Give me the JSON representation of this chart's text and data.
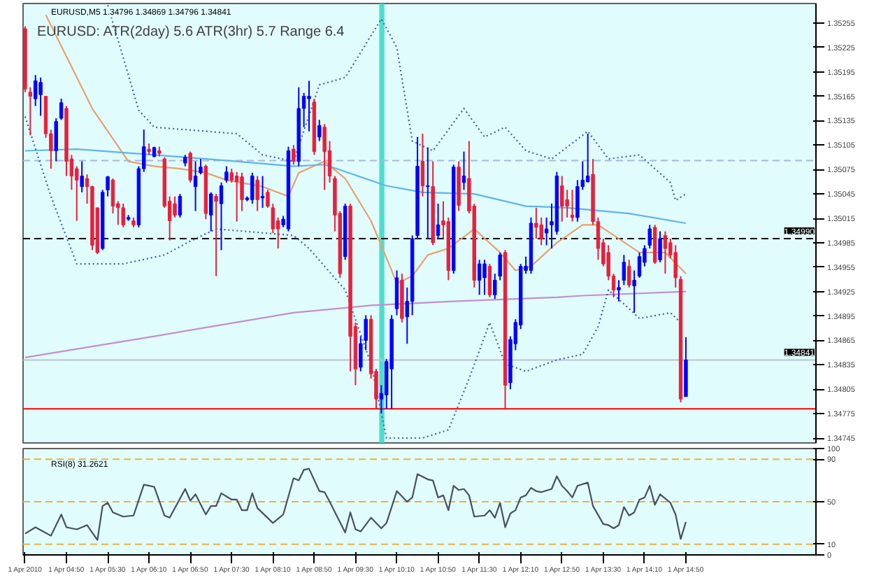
{
  "chart_data": [
    {
      "type": "candlestick",
      "title": "EURUSD,M5  1.34796 1.34869 1.34796 1.34841",
      "subtitle": "EURUSD: ATR(2day)     5.6   ATR(3hr)     5.7   Range     6.4",
      "xlim": [
        "2010-04-01T04:08",
        "2010-04-01T16:56"
      ],
      "tick_labels": "y",
      "ylim": [
        1.34739,
        1.35279
      ],
      "yticks": [
        1.34745,
        1.34775,
        1.34805,
        1.34835,
        1.34865,
        1.34895,
        1.34925,
        1.34955,
        1.34985,
        1.35015,
        1.35045,
        1.35075,
        1.35105,
        1.35135,
        1.35165,
        1.35195,
        1.35225,
        1.35255
      ],
      "x": [
        "2010-04-01T04:10",
        "2010-04-01T04:15",
        "2010-04-01T04:20",
        "2010-04-01T04:25",
        "2010-04-01T04:30",
        "2010-04-01T04:35",
        "2010-04-01T04:40",
        "2010-04-01T04:45",
        "2010-04-01T04:50",
        "2010-04-01T04:55",
        "2010-04-01T05:00",
        "2010-04-01T05:05",
        "2010-04-01T05:10",
        "2010-04-01T05:15",
        "2010-04-01T05:20",
        "2010-04-01T05:25",
        "2010-04-01T05:30",
        "2010-04-01T05:35",
        "2010-04-01T05:40",
        "2010-04-01T05:45",
        "2010-04-01T05:50",
        "2010-04-01T05:55",
        "2010-04-01T06:00",
        "2010-04-01T06:05",
        "2010-04-01T06:10",
        "2010-04-01T06:15",
        "2010-04-01T06:20",
        "2010-04-01T06:25",
        "2010-04-01T06:30",
        "2010-04-01T06:35",
        "2010-04-01T06:40",
        "2010-04-01T06:45",
        "2010-04-01T06:50",
        "2010-04-01T06:55",
        "2010-04-01T07:00",
        "2010-04-01T07:05",
        "2010-04-01T07:10",
        "2010-04-01T07:15",
        "2010-04-01T07:20",
        "2010-04-01T07:25",
        "2010-04-01T07:30",
        "2010-04-01T07:35",
        "2010-04-01T07:40",
        "2010-04-01T07:45",
        "2010-04-01T07:50",
        "2010-04-01T07:55",
        "2010-04-01T08:00",
        "2010-04-01T08:05",
        "2010-04-01T08:10",
        "2010-04-01T08:15",
        "2010-04-01T08:20",
        "2010-04-01T08:25",
        "2010-04-01T08:30",
        "2010-04-01T08:35",
        "2010-04-01T08:40",
        "2010-04-01T08:45",
        "2010-04-01T08:50",
        "2010-04-01T08:55",
        "2010-04-01T09:00",
        "2010-04-01T09:05",
        "2010-04-01T09:10",
        "2010-04-01T09:15",
        "2010-04-01T09:20",
        "2010-04-01T09:25",
        "2010-04-01T09:30",
        "2010-04-01T09:35",
        "2010-04-01T09:40",
        "2010-04-01T09:45",
        "2010-04-01T09:50",
        "2010-04-01T09:55",
        "2010-04-01T10:00",
        "2010-04-01T10:05",
        "2010-04-01T10:10",
        "2010-04-01T10:15",
        "2010-04-01T10:20",
        "2010-04-01T10:25",
        "2010-04-01T10:30",
        "2010-04-01T10:35",
        "2010-04-01T10:40",
        "2010-04-01T10:45",
        "2010-04-01T10:50",
        "2010-04-01T10:55",
        "2010-04-01T11:00",
        "2010-04-01T11:05",
        "2010-04-01T11:10",
        "2010-04-01T11:15",
        "2010-04-01T11:20",
        "2010-04-01T11:25",
        "2010-04-01T11:30",
        "2010-04-01T11:35",
        "2010-04-01T11:40",
        "2010-04-01T11:45",
        "2010-04-01T11:50",
        "2010-04-01T11:55",
        "2010-04-01T12:00",
        "2010-04-01T12:05",
        "2010-04-01T12:10",
        "2010-04-01T12:15",
        "2010-04-01T12:20",
        "2010-04-01T12:25",
        "2010-04-01T12:30",
        "2010-04-01T12:35",
        "2010-04-01T12:40",
        "2010-04-01T12:45",
        "2010-04-01T12:50",
        "2010-04-01T12:55",
        "2010-04-01T13:00",
        "2010-04-01T13:05",
        "2010-04-01T13:10",
        "2010-04-01T13:15",
        "2010-04-01T13:20",
        "2010-04-01T13:25",
        "2010-04-01T13:30",
        "2010-04-01T13:35",
        "2010-04-01T13:40",
        "2010-04-01T13:45",
        "2010-04-01T13:50",
        "2010-04-01T13:55",
        "2010-04-01T14:00",
        "2010-04-01T14:05",
        "2010-04-01T14:10",
        "2010-04-01T14:15",
        "2010-04-01T14:20",
        "2010-04-01T14:25",
        "2010-04-01T14:30",
        "2010-04-01T14:35",
        "2010-04-01T14:40",
        "2010-04-01T14:45",
        "2010-04-01T14:50"
      ],
      "ohlc": [
        [
          1.35248,
          1.35251,
          1.3517,
          1.35174
        ],
        [
          1.3517,
          1.35176,
          1.35117,
          1.35165
        ],
        [
          1.35162,
          1.35191,
          1.35153,
          1.35184
        ],
        [
          1.35167,
          1.35188,
          1.35141,
          1.35182
        ],
        [
          1.35165,
          1.35165,
          1.35114,
          1.35119
        ],
        [
          1.35119,
          1.35124,
          1.35076,
          1.35098
        ],
        [
          1.35098,
          1.35138,
          1.35085,
          1.35134
        ],
        [
          1.35138,
          1.35162,
          1.35136,
          1.35157
        ],
        [
          1.3515,
          1.35153,
          1.35067,
          1.35085
        ],
        [
          1.35088,
          1.35093,
          1.3505,
          1.35067
        ],
        [
          1.35076,
          1.35079,
          1.35012,
          1.35062
        ],
        [
          1.35054,
          1.35085,
          1.35047,
          1.35067
        ],
        [
          1.35064,
          1.35069,
          1.35033,
          1.35054
        ],
        [
          1.35054,
          1.35055,
          1.34976,
          1.34982
        ],
        [
          1.35028,
          1.35028,
          1.34971,
          1.34973
        ],
        [
          1.34978,
          1.3505,
          1.34976,
          1.35047
        ],
        [
          1.3505,
          1.35067,
          1.35042,
          1.35066
        ],
        [
          1.35062,
          1.35064,
          1.35021,
          1.3503
        ],
        [
          1.35033,
          1.35036,
          1.35007,
          1.35028
        ],
        [
          1.35028,
          1.35033,
          1.35004,
          1.35007
        ],
        [
          1.35014,
          1.35019,
          1.35012,
          1.35016
        ],
        [
          1.35012,
          1.35016,
          1.35004,
          1.35007
        ],
        [
          1.35007,
          1.35079,
          1.35004,
          1.35076
        ],
        [
          1.35076,
          1.35124,
          1.35072,
          1.35103
        ],
        [
          1.351,
          1.35107,
          1.35093,
          1.35097
        ],
        [
          1.35091,
          1.35103,
          1.3509,
          1.35102
        ],
        [
          1.35098,
          1.35103,
          1.35091,
          1.35095
        ],
        [
          1.35088,
          1.3509,
          1.35028,
          1.3503
        ],
        [
          1.35036,
          1.35042,
          1.34988,
          1.35012
        ],
        [
          1.35033,
          1.35042,
          1.35016,
          1.35019
        ],
        [
          1.35019,
          1.35045,
          1.35016,
          1.35042
        ],
        [
          1.35083,
          1.35093,
          1.35079,
          1.3509
        ],
        [
          1.35095,
          1.35097,
          1.35059,
          1.35062
        ],
        [
          1.35054,
          1.35085,
          1.35024,
          1.35067
        ],
        [
          1.35071,
          1.35088,
          1.35069,
          1.35078
        ],
        [
          1.35079,
          1.35081,
          1.35014,
          1.35021
        ],
        [
          1.35019,
          1.35047,
          1.34999,
          1.35045
        ],
        [
          1.35042,
          1.35045,
          1.34944,
          1.35036
        ],
        [
          1.35033,
          1.35059,
          1.34976,
          1.35055
        ],
        [
          1.35062,
          1.35079,
          1.35059,
          1.35072
        ],
        [
          1.35071,
          1.35076,
          1.35059,
          1.35062
        ],
        [
          1.35067,
          1.35072,
          1.35011,
          1.3506
        ],
        [
          1.35066,
          1.35071,
          1.35024,
          1.35038
        ],
        [
          1.35038,
          1.35042,
          1.35036,
          1.3504
        ],
        [
          1.35038,
          1.35071,
          1.35033,
          1.35067
        ],
        [
          1.35062,
          1.35067,
          1.35024,
          1.35038
        ],
        [
          1.3504,
          1.35067,
          1.35028,
          1.35042
        ],
        [
          1.35047,
          1.3505,
          1.35028,
          1.3503
        ],
        [
          1.35028,
          1.35033,
          1.34997,
          1.35002
        ],
        [
          1.35012,
          1.35016,
          1.34978,
          1.35002
        ],
        [
          1.35007,
          1.35018,
          1.35004,
          1.35014
        ],
        [
          1.35002,
          1.35103,
          1.34999,
          1.35098
        ],
        [
          1.351,
          1.35105,
          1.35081,
          1.35085
        ],
        [
          1.35085,
          1.35176,
          1.35079,
          1.3515
        ],
        [
          1.3515,
          1.35169,
          1.35127,
          1.35165
        ],
        [
          1.35162,
          1.35184,
          1.35122,
          1.35165
        ],
        [
          1.35158,
          1.35162,
          1.35093,
          1.35097
        ],
        [
          1.35115,
          1.35136,
          1.3511,
          1.35129
        ],
        [
          1.35127,
          1.35131,
          1.3505,
          1.35097
        ],
        [
          1.35098,
          1.3511,
          1.35059,
          1.35067
        ],
        [
          1.35064,
          1.35067,
          1.34999,
          1.35019
        ],
        [
          1.35021,
          1.35024,
          1.34942,
          1.34947
        ],
        [
          1.34968,
          1.35033,
          1.34964,
          1.3503
        ],
        [
          1.3503,
          1.35033,
          1.34827,
          1.3487
        ],
        [
          1.34882,
          1.34887,
          1.3481,
          1.3483
        ],
        [
          1.34832,
          1.3487,
          1.34827,
          1.34861
        ],
        [
          1.34865,
          1.34896,
          1.34853,
          1.34891
        ],
        [
          1.34891,
          1.34896,
          1.34818,
          1.34824
        ],
        [
          1.34827,
          1.3483,
          1.34781,
          1.34793
        ],
        [
          1.34793,
          1.3481,
          1.34776,
          1.348
        ],
        [
          1.34798,
          1.34842,
          1.34781,
          1.34839
        ],
        [
          1.3483,
          1.34896,
          1.34781,
          1.34891
        ],
        [
          1.34904,
          1.34951,
          1.34896,
          1.34942
        ],
        [
          1.34939,
          1.34947,
          1.34887,
          1.34892
        ],
        [
          1.34894,
          1.3493,
          1.34861,
          1.34913
        ],
        [
          1.34913,
          1.34994,
          1.34896,
          1.3499
        ],
        [
          1.34994,
          1.35115,
          1.3499,
          1.35079
        ],
        [
          1.35085,
          1.35119,
          1.35042,
          1.35055
        ],
        [
          1.35054,
          1.35102,
          1.3499,
          1.35055
        ],
        [
          1.35054,
          1.35085,
          1.34982,
          1.34985
        ],
        [
          1.34994,
          1.35033,
          1.3499,
          1.35007
        ],
        [
          1.35012,
          1.35036,
          1.3499,
          1.35007
        ],
        [
          1.35011,
          1.35016,
          1.34939,
          1.34951
        ],
        [
          1.34951,
          1.35081,
          1.34947,
          1.35078
        ],
        [
          1.35078,
          1.35085,
          1.35024,
          1.35031
        ],
        [
          1.35059,
          1.35097,
          1.3505,
          1.35067
        ],
        [
          1.35064,
          1.3511,
          1.35021,
          1.35024
        ],
        [
          1.3503,
          1.35033,
          1.3493,
          1.34939
        ],
        [
          1.34939,
          1.34964,
          1.34921,
          1.34959
        ],
        [
          1.34942,
          1.34964,
          1.34921,
          1.34959
        ],
        [
          1.34956,
          1.34959,
          1.34918,
          1.34921
        ],
        [
          1.34921,
          1.34947,
          1.34916,
          1.34939
        ],
        [
          1.34944,
          1.34973,
          1.34939,
          1.3497
        ],
        [
          1.34973,
          1.34976,
          1.34781,
          1.3481
        ],
        [
          1.34813,
          1.3487,
          1.34805,
          1.34866
        ],
        [
          1.34861,
          1.34891,
          1.34853,
          1.34887
        ],
        [
          1.34884,
          1.34959,
          1.34879,
          1.34956
        ],
        [
          1.34951,
          1.34968,
          1.34947,
          1.34956
        ],
        [
          1.34951,
          1.35016,
          1.34947,
          1.35009
        ],
        [
          1.35009,
          1.35028,
          1.3499,
          1.35004
        ],
        [
          1.35007,
          1.35016,
          1.34982,
          1.3499
        ],
        [
          1.34997,
          1.35016,
          1.34982,
          1.35002
        ],
        [
          1.35007,
          1.35033,
          1.34978,
          1.35011
        ],
        [
          1.34999,
          1.35072,
          1.34995,
          1.35067
        ],
        [
          1.35055,
          1.35067,
          1.35011,
          1.3503
        ],
        [
          1.35038,
          1.3505,
          1.35016,
          1.3503
        ],
        [
          1.35019,
          1.3505,
          1.35011,
          1.35016
        ],
        [
          1.35016,
          1.35062,
          1.35011,
          1.35054
        ],
        [
          1.35054,
          1.35085,
          1.3505,
          1.35062
        ],
        [
          1.3506,
          1.35119,
          1.35059,
          1.35067
        ],
        [
          1.35069,
          1.35088,
          1.35007,
          1.35011
        ],
        [
          1.35011,
          1.35016,
          1.34964,
          1.34978
        ],
        [
          1.34985,
          1.3499,
          1.34956,
          1.34959
        ],
        [
          1.34973,
          1.34982,
          1.34939,
          1.34944
        ],
        [
          1.34944,
          1.34947,
          1.34918,
          1.34927
        ],
        [
          1.34927,
          1.34939,
          1.34913,
          1.3493
        ],
        [
          1.34939,
          1.3497,
          1.34933,
          1.34961
        ],
        [
          1.34956,
          1.34964,
          1.3493,
          1.34933
        ],
        [
          1.34932,
          1.34951,
          1.34899,
          1.34939
        ],
        [
          1.34944,
          1.34973,
          1.34942,
          1.34968
        ],
        [
          1.34961,
          1.34982,
          1.34956,
          1.34978
        ],
        [
          1.34982,
          1.35007,
          1.34978,
          1.35002
        ],
        [
          1.35004,
          1.35007,
          1.34959,
          1.34961
        ],
        [
          1.34964,
          1.34999,
          1.34961,
          1.3499
        ],
        [
          1.34994,
          1.34999,
          1.34947,
          1.34978
        ],
        [
          1.34985,
          1.3499,
          1.34966,
          1.3497
        ],
        [
          1.34973,
          1.34982,
          1.3493,
          1.34942
        ],
        [
          1.3494,
          1.34944,
          1.34789,
          1.34793
        ],
        [
          1.34796,
          1.34869,
          1.34796,
          1.34841
        ]
      ],
      "colors": [
        "#e8203c",
        "#e8203c",
        "#0000ff",
        "#0000ff",
        "#e8203c",
        "#e8203c",
        "#0000ff",
        "#0000ff",
        "#e8203c",
        "#e8203c",
        "#e8203c",
        "#0000ff",
        "#e8203c",
        "#e8203c",
        "#e8203c",
        "#0000ff",
        "#0000ff",
        "#e8203c",
        "#e8203c",
        "#e8203c",
        "#0000ff",
        "#e8203c",
        "#0000ff",
        "#0000ff",
        "#e8203c",
        "#0000ff",
        "#e8203c",
        "#e8203c",
        "#e8203c",
        "#e8203c",
        "#0000ff",
        "#0000ff",
        "#e8203c",
        "#0000ff",
        "#0000ff",
        "#e8203c",
        "#0000ff",
        "#e8203c",
        "#0000ff",
        "#0000ff",
        "#e8203c",
        "#e8203c",
        "#e8203c",
        "#0000ff",
        "#0000ff",
        "#e8203c",
        "#0000ff",
        "#e8203c",
        "#e8203c",
        "#e8203c",
        "#0000ff",
        "#0000ff",
        "#e8203c",
        "#0000ff",
        "#0000ff",
        "#0000ff",
        "#e8203c",
        "#0000ff",
        "#e8203c",
        "#e8203c",
        "#e8203c",
        "#e8203c",
        "#0000ff",
        "#e8203c",
        "#e8203c",
        "#0000ff",
        "#0000ff",
        "#e8203c",
        "#e8203c",
        "#0000ff",
        "#0000ff",
        "#0000ff",
        "#0000ff",
        "#e8203c",
        "#0000ff",
        "#0000ff",
        "#0000ff",
        "#e8203c",
        "#0000ff",
        "#e8203c",
        "#0000ff",
        "#e8203c",
        "#e8203c",
        "#0000ff",
        "#e8203c",
        "#0000ff",
        "#e8203c",
        "#e8203c",
        "#0000ff",
        "#0000ff",
        "#e8203c",
        "#0000ff",
        "#0000ff",
        "#e8203c",
        "#0000ff",
        "#0000ff",
        "#0000ff",
        "#0000ff",
        "#0000ff",
        "#e8203c",
        "#e8203c",
        "#0000ff",
        "#0000ff",
        "#0000ff",
        "#e8203c",
        "#e8203c",
        "#e8203c",
        "#0000ff",
        "#0000ff",
        "#0000ff",
        "#e8203c",
        "#e8203c",
        "#e8203c",
        "#e8203c",
        "#e8203c",
        "#0000ff",
        "#0000ff",
        "#e8203c",
        "#0000ff",
        "#0000ff",
        "#0000ff",
        "#0000ff",
        "#e8203c",
        "#0000ff",
        "#e8203c",
        "#e8203c",
        "#e8203c",
        "#e8203c",
        "#0000ff"
      ],
      "series": [
        {
          "type": "line",
          "color": "#e8a070",
          "x": [
            "2010-04-01T04:30",
            "2010-04-01T05:15",
            "2010-04-01T05:50",
            "2010-04-01T06:15",
            "2010-04-01T06:40",
            "2010-04-01T07:05",
            "2010-04-01T07:25",
            "2010-04-01T08:00",
            "2010-04-01T08:25",
            "2010-04-01T08:35",
            "2010-04-01T09:00",
            "2010-04-01T09:20",
            "2010-04-01T09:45",
            "2010-04-01T10:05",
            "2010-04-01T10:10",
            "2010-04-01T10:25",
            "2010-04-01T10:40",
            "2010-04-01T11:00",
            "2010-04-01T11:25",
            "2010-04-01T11:50",
            "2010-04-01T12:05",
            "2010-04-01T12:20",
            "2010-04-01T12:45",
            "2010-04-01T13:10",
            "2010-04-01T13:25",
            "2010-04-01T13:45",
            "2010-04-01T14:05",
            "2010-04-01T14:30",
            "2010-04-01T14:50"
          ],
          "values": [
            1.35265,
            1.3515,
            1.35085,
            1.35079,
            1.35076,
            1.35071,
            1.35062,
            1.35054,
            1.35042,
            1.35071,
            1.35085,
            1.35064,
            1.35012,
            1.34951,
            1.34935,
            1.34944,
            1.3497,
            1.34978,
            1.35002,
            1.34973,
            1.34951,
            1.34956,
            1.34985,
            1.35007,
            1.35007,
            1.3499,
            1.34973,
            1.34973,
            1.34947
          ]
        },
        {
          "type": "line",
          "color": "#60b4ec",
          "x": [
            "2010-04-01T04:10",
            "2010-04-01T05:00",
            "2010-04-01T06:15",
            "2010-04-01T07:35",
            "2010-04-01T08:30",
            "2010-04-01T09:00",
            "2010-04-01T10:00",
            "2010-04-01T10:35",
            "2010-04-01T11:25",
            "2010-04-01T12:15",
            "2010-04-01T12:55",
            "2010-04-01T13:55",
            "2010-04-01T14:50"
          ],
          "values": [
            1.35098,
            1.351,
            1.35093,
            1.35085,
            1.35079,
            1.35081,
            1.35055,
            1.35047,
            1.35045,
            1.3503,
            1.35028,
            1.35021,
            1.35009
          ]
        },
        {
          "type": "line",
          "color": "#c090d0",
          "x": [
            "2010-04-01T04:10",
            "2010-04-01T06:15",
            "2010-04-01T08:30",
            "2010-04-01T09:45",
            "2010-04-01T11:05",
            "2010-04-01T12:45",
            "2010-04-01T13:10",
            "2010-04-01T14:50"
          ],
          "values": [
            1.34844,
            1.3487,
            1.34899,
            1.34908,
            1.34913,
            1.34918,
            1.3492,
            1.34925
          ]
        },
        {
          "type": "line",
          "color": "#4060a8",
          "line_style": "dotted",
          "x": [
            "2010-04-01T05:30",
            "2010-04-01T06:00",
            "2010-04-01T06:15",
            "2010-04-01T07:35",
            "2010-04-01T08:00",
            "2010-04-01T08:30",
            "2010-04-01T08:55",
            "2010-04-01T09:20",
            "2010-04-01T09:55",
            "2010-04-01T10:10",
            "2010-04-01T10:25",
            "2010-04-01T10:45",
            "2010-04-01T11:15",
            "2010-04-01T11:35",
            "2010-04-01T11:55",
            "2010-04-01T12:15",
            "2010-04-01T12:40",
            "2010-04-01T13:15",
            "2010-04-01T13:35",
            "2010-04-01T14:05",
            "2010-04-01T14:35",
            "2010-04-01T14:40",
            "2010-04-01T14:50"
          ],
          "values": [
            1.35277,
            1.35148,
            1.35127,
            1.35119,
            1.35093,
            1.35085,
            1.35179,
            1.35188,
            1.3526,
            1.35225,
            1.3511,
            1.35098,
            1.3515,
            1.35115,
            1.35127,
            1.35098,
            1.35088,
            1.35122,
            1.35088,
            1.35093,
            1.35059,
            1.35037,
            1.35045
          ]
        },
        {
          "type": "line",
          "color": "#4060a8",
          "line_style": "dotted",
          "x": [
            "2010-04-01T04:10",
            "2010-04-01T04:35",
            "2010-04-01T05:00",
            "2010-04-01T05:45",
            "2010-04-01T06:25",
            "2010-04-01T06:50",
            "2010-04-01T07:15",
            "2010-04-01T08:30",
            "2010-04-01T08:45",
            "2010-04-01T09:20",
            "2010-04-01T09:45",
            "2010-04-01T10:00",
            "2010-04-01T10:35",
            "2010-04-01T11:00",
            "2010-04-01T11:20",
            "2010-04-01T11:40",
            "2010-04-01T11:55",
            "2010-04-01T12:15",
            "2010-04-01T12:45",
            "2010-04-01T13:10",
            "2010-04-01T13:25",
            "2010-04-01T13:35",
            "2010-04-01T13:55",
            "2010-04-01T14:05",
            "2010-04-01T14:35",
            "2010-04-01T14:45"
          ],
          "values": [
            1.3514,
            1.35042,
            1.34959,
            1.34959,
            1.3497,
            1.34987,
            1.35002,
            1.34994,
            1.34978,
            1.34927,
            1.34836,
            1.34745,
            1.34745,
            1.34755,
            1.34818,
            1.34887,
            1.34836,
            1.34827,
            1.34841,
            1.34848,
            1.34882,
            1.34927,
            1.34904,
            1.34892,
            1.34899,
            1.34887
          ]
        }
      ],
      "ref_lines": [
        {
          "axis": "y",
          "value": 1.3499,
          "label": "1.34990",
          "color": "#000000",
          "line_style": "dashed"
        },
        {
          "axis": "y",
          "value": 1.34841,
          "label": "1.34841",
          "color": "#b8c4cc",
          "line_style": "solid"
        },
        {
          "axis": "y",
          "value": 1.35086,
          "color": "#a8b8d8",
          "line_style": "dashed"
        },
        {
          "axis": "y",
          "value": 1.34781,
          "color": "#ff0000",
          "line_style": "solid"
        }
      ],
      "bands": [
        {
          "axis": "x",
          "from": "2010-04-01T09:53",
          "to": "2010-04-01T09:58",
          "color": "#40d8c8"
        }
      ]
    },
    {
      "type": "line",
      "title": "RSI(8) 31.2621",
      "xlim": [
        "2010-04-01T04:08",
        "2010-04-01T16:56"
      ],
      "xticks": [
        {
          "value": "2010-04-01T04:10",
          "label": "1 Apr 2010"
        },
        {
          "value": "2010-04-01T04:50",
          "label": "1 Apr 04:50"
        },
        {
          "value": "2010-04-01T05:30",
          "label": "1 Apr 05:30"
        },
        {
          "value": "2010-04-01T06:10",
          "label": "1 Apr 06:10"
        },
        {
          "value": "2010-04-01T06:50",
          "label": "1 Apr 06:50"
        },
        {
          "value": "2010-04-01T07:30",
          "label": "1 Apr 07:30"
        },
        {
          "value": "2010-04-01T08:10",
          "label": "1 Apr 08:10"
        },
        {
          "value": "2010-04-01T08:50",
          "label": "1 Apr 08:50"
        },
        {
          "value": "2010-04-01T09:30",
          "label": "1 Apr 09:30"
        },
        {
          "value": "2010-04-01T10:10",
          "label": "1 Apr 10:10"
        },
        {
          "value": "2010-04-01T10:50",
          "label": "1 Apr 10:50"
        },
        {
          "value": "2010-04-01T11:30",
          "label": "1 Apr 11:30"
        },
        {
          "value": "2010-04-01T12:10",
          "label": "1 Apr 12:10"
        },
        {
          "value": "2010-04-01T12:50",
          "label": "1 Apr 12:50"
        },
        {
          "value": "2010-04-01T13:30",
          "label": "1 Apr 13:30"
        },
        {
          "value": "2010-04-01T14:10",
          "label": "1 Apr 14:10"
        },
        {
          "value": "2010-04-01T14:50",
          "label": "1 Apr 14:50"
        }
      ],
      "ylim": [
        0,
        100
      ],
      "yticks": [
        0,
        10,
        50,
        90,
        100
      ],
      "series": [
        {
          "color": "#485060",
          "x": [
            "2010-04-01T04:10",
            "2010-04-01T04:20",
            "2010-04-01T04:35",
            "2010-04-01T04:45",
            "2010-04-01T04:50",
            "2010-04-01T05:00",
            "2010-04-01T05:10",
            "2010-04-01T05:20",
            "2010-04-01T05:25",
            "2010-04-01T05:30",
            "2010-04-01T05:35",
            "2010-04-01T05:45",
            "2010-04-01T05:55",
            "2010-04-01T06:05",
            "2010-04-01T06:10",
            "2010-04-01T06:15",
            "2010-04-01T06:25",
            "2010-04-01T06:30",
            "2010-04-01T06:45",
            "2010-04-01T06:50",
            "2010-04-01T06:55",
            "2010-04-01T07:05",
            "2010-04-01T07:10",
            "2010-04-01T07:15",
            "2010-04-01T07:20",
            "2010-04-01T07:30",
            "2010-04-01T07:35",
            "2010-04-01T07:40",
            "2010-04-01T07:45",
            "2010-04-01T07:50",
            "2010-04-01T07:55",
            "2010-04-01T08:10",
            "2010-04-01T08:15",
            "2010-04-01T08:20",
            "2010-04-01T08:30",
            "2010-04-01T08:35",
            "2010-04-01T08:40",
            "2010-04-01T08:45",
            "2010-04-01T08:55",
            "2010-04-01T09:00",
            "2010-04-01T09:05",
            "2010-04-01T09:20",
            "2010-04-01T09:25",
            "2010-04-01T09:30",
            "2010-04-01T09:35",
            "2010-04-01T09:45",
            "2010-04-01T09:55",
            "2010-04-01T10:00",
            "2010-04-01T10:10",
            "2010-04-01T10:20",
            "2010-04-01T10:25",
            "2010-04-01T10:30",
            "2010-04-01T10:40",
            "2010-04-01T10:45",
            "2010-04-01T10:50",
            "2010-04-01T10:55",
            "2010-04-01T11:00",
            "2010-04-01T11:05",
            "2010-04-01T11:10",
            "2010-04-01T11:15",
            "2010-04-01T11:20",
            "2010-04-01T11:25",
            "2010-04-01T11:35",
            "2010-04-01T11:40",
            "2010-04-01T11:45",
            "2010-04-01T11:50",
            "2010-04-01T11:55",
            "2010-04-01T12:00",
            "2010-04-01T12:05",
            "2010-04-01T12:10",
            "2010-04-01T12:15",
            "2010-04-01T12:20",
            "2010-04-01T12:25",
            "2010-04-01T12:30",
            "2010-04-01T12:40",
            "2010-04-01T12:45",
            "2010-04-01T12:50",
            "2010-04-01T12:55",
            "2010-04-01T13:00",
            "2010-04-01T13:05",
            "2010-04-01T13:15",
            "2010-04-01T13:20",
            "2010-04-01T13:30",
            "2010-04-01T13:35",
            "2010-04-01T13:40",
            "2010-04-01T13:45",
            "2010-04-01T13:50",
            "2010-04-01T13:55",
            "2010-04-01T14:00",
            "2010-04-01T14:05",
            "2010-04-01T14:10",
            "2010-04-01T14:15",
            "2010-04-01T14:20",
            "2010-04-01T14:25",
            "2010-04-01T14:35",
            "2010-04-01T14:40",
            "2010-04-01T14:45",
            "2010-04-01T14:50"
          ],
          "values": [
            20,
            26,
            18,
            38,
            26,
            24,
            28,
            14,
            46,
            49,
            40,
            36,
            37,
            66,
            65,
            64,
            37,
            35,
            62,
            51,
            57,
            38,
            46,
            46,
            58,
            52,
            52,
            42,
            42,
            58,
            44,
            30,
            34,
            38,
            72,
            70,
            80,
            81,
            60,
            59,
            50,
            21,
            40,
            24,
            22,
            35,
            25,
            30,
            60,
            50,
            54,
            76,
            71,
            70,
            54,
            56,
            42,
            65,
            61,
            62,
            56,
            36,
            37,
            42,
            35,
            49,
            26,
            39,
            42,
            54,
            56,
            63,
            60,
            59,
            62,
            74,
            65,
            60,
            54,
            65,
            68,
            46,
            29,
            28,
            25,
            28,
            45,
            37,
            40,
            52,
            54,
            65,
            47,
            57,
            49,
            38,
            15,
            31
          ]
        }
      ],
      "ref_lines": [
        {
          "axis": "y",
          "value": 90,
          "color": "#f0b040",
          "line_style": "dashed"
        },
        {
          "axis": "y",
          "value": 50,
          "color": "#f0b040",
          "line_style": "dashed"
        },
        {
          "axis": "y",
          "value": 10,
          "color": "#f0b040",
          "line_style": "dashed"
        }
      ]
    }
  ]
}
